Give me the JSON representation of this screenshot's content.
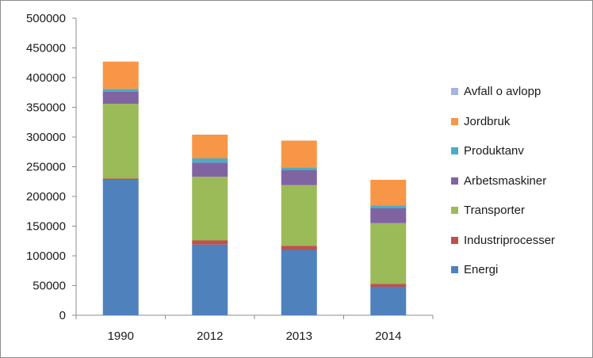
{
  "chart_data": {
    "type": "bar",
    "stacked": true,
    "title": "",
    "xlabel": "",
    "ylabel": "",
    "categories": [
      "1990",
      "2012",
      "2013",
      "2014"
    ],
    "ylim": [
      0,
      500000
    ],
    "yticks": [
      "0",
      "50000",
      "100000",
      "150000",
      "200000",
      "250000",
      "300000",
      "350000",
      "400000",
      "450000",
      "500000"
    ],
    "grid": false,
    "legend_position": "right",
    "series": [
      {
        "name": "Energi",
        "color": "#4f81bd",
        "values": [
          228000,
          119000,
          110000,
          48000
        ]
      },
      {
        "name": "Industriprocesser",
        "color": "#c0504d",
        "values": [
          2000,
          7000,
          7000,
          5000
        ]
      },
      {
        "name": "Transporter",
        "color": "#9bbb59",
        "values": [
          126000,
          107000,
          102000,
          102000
        ]
      },
      {
        "name": "Arbetsmaskiner",
        "color": "#8064a2",
        "values": [
          20000,
          24000,
          25000,
          25000
        ]
      },
      {
        "name": "Produktanv",
        "color": "#4bacc6",
        "values": [
          5000,
          7000,
          5000,
          5000
        ]
      },
      {
        "name": "Jordbruk",
        "color": "#f79646",
        "values": [
          46000,
          40000,
          45000,
          43000
        ]
      },
      {
        "name": "Avfall o avlopp",
        "color": "#a5b4e0",
        "values": [
          0,
          0,
          0,
          0
        ]
      }
    ]
  }
}
